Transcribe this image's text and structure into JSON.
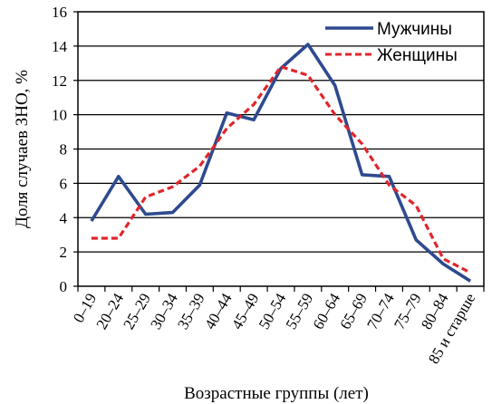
{
  "chart_data": {
    "type": "line",
    "categories": [
      "0–19",
      "20–24",
      "25–29",
      "30–34",
      "35–39",
      "40–44",
      "45–49",
      "50–54",
      "55–59",
      "60–64",
      "65–69",
      "70–74",
      "75–79",
      "80–84",
      "85 и старше"
    ],
    "series": [
      {
        "name": "Мужчины",
        "color": "#2e4a8f",
        "style": "solid",
        "values": [
          3.8,
          6.4,
          4.2,
          4.3,
          5.9,
          10.1,
          9.7,
          12.7,
          14.1,
          11.7,
          6.5,
          6.4,
          2.7,
          1.3,
          0.3
        ]
      },
      {
        "name": "Женщины",
        "color": "#e0262c",
        "style": "dashed",
        "values": [
          2.8,
          2.8,
          5.2,
          5.8,
          7.0,
          9.2,
          10.6,
          12.8,
          12.3,
          10.0,
          8.3,
          5.9,
          4.7,
          1.6,
          0.8
        ]
      }
    ],
    "xlabel": "Возрастные группы (лет)",
    "ylabel": "Доля случаев ЗНО, %",
    "ylim": [
      0,
      16
    ],
    "yticks": [
      0,
      2,
      4,
      6,
      8,
      10,
      12,
      14,
      16
    ],
    "grid": "horizontal",
    "legend": "top-right"
  }
}
